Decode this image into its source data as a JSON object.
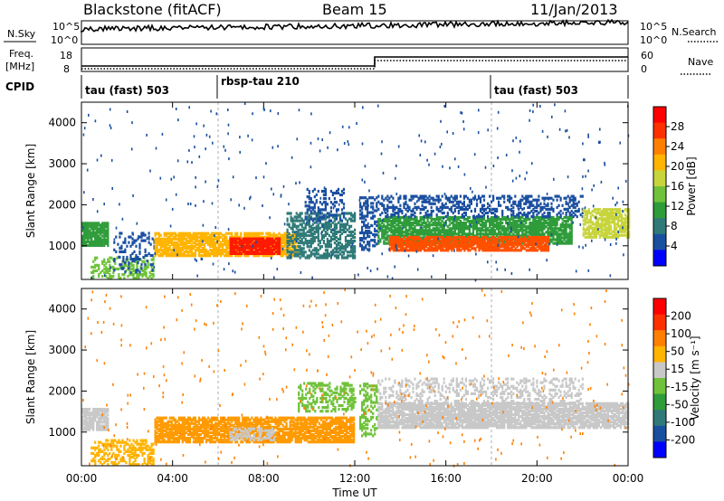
{
  "header": {
    "station": "Blackstone (fitACF)",
    "beam": "Beam 15",
    "date": "11/Jan/2013"
  },
  "strip_labels": {
    "nsky": "N.Sky",
    "nsearch": "N.Search",
    "freq": "Freq.",
    "freq_unit": "[MHz]",
    "nave": "Nave",
    "cpid": "CPID"
  },
  "strip_ticks": {
    "noise_left": [
      "10^5",
      "10^0"
    ],
    "noise_right": [
      "10^5",
      "10^0"
    ],
    "freq_left": [
      "18",
      "8"
    ],
    "nave_right": [
      "60",
      "0"
    ]
  },
  "cpid_segments": [
    {
      "label": "tau (fast) 503",
      "start_hour": 0
    },
    {
      "label": "rbsp-tau 210",
      "start_hour": 6
    },
    {
      "label": "tau (fast) 503",
      "start_hour": 18
    }
  ],
  "colors": {
    "frame": "#000000",
    "power_scale": [
      "#0000ff",
      "#1a4fa0",
      "#2f7a78",
      "#2f9c3a",
      "#6fc23a",
      "#c8d43c",
      "#ffb400",
      "#ff8000",
      "#ff3000",
      "#ff0000"
    ],
    "velocity_scale": [
      "#0000ff",
      "#1a4fa0",
      "#2f7a78",
      "#2f9c3a",
      "#6fc23a",
      "#c8c8c8",
      "#ffb400",
      "#ff8000",
      "#ff3000",
      "#ff0000"
    ]
  },
  "chart_data": [
    {
      "type": "heatmap",
      "panel": "power",
      "x_ticks": [
        "00:00",
        "04:00",
        "08:00",
        "12:00",
        "16:00",
        "20:00",
        "00:00"
      ],
      "xlim_hours": [
        0,
        24
      ],
      "ylabel": "Slant Range [km]",
      "y_ticks": [
        1000,
        2000,
        3000,
        4000
      ],
      "ylim": [
        180,
        4500
      ],
      "colorbar": {
        "label": "Power [dB]",
        "ticks": [
          "28",
          "24",
          "20",
          "16",
          "12",
          "8",
          "4"
        ]
      },
      "bands": [
        {
          "t0": 0.0,
          "t1": 1.2,
          "r0": 1000,
          "r1": 1550,
          "color": "#2f9c3a",
          "density": 0.85
        },
        {
          "t0": 0.4,
          "t1": 3.2,
          "r0": 200,
          "r1": 700,
          "color": "#6fc23a",
          "density": 0.45
        },
        {
          "t0": 1.4,
          "t1": 3.2,
          "r0": 350,
          "r1": 1300,
          "color": "#1a4fa0",
          "density": 0.25
        },
        {
          "t0": 3.2,
          "t1": 9.5,
          "r0": 750,
          "r1": 1300,
          "color": "#ffb400",
          "density": 0.8
        },
        {
          "t0": 6.5,
          "t1": 8.7,
          "r0": 800,
          "r1": 1200,
          "color": "#ff1a00",
          "density": 0.9
        },
        {
          "t0": 9.0,
          "t1": 12.0,
          "r0": 700,
          "r1": 1800,
          "color": "#2f7a78",
          "density": 0.55
        },
        {
          "t0": 9.8,
          "t1": 11.5,
          "r0": 1600,
          "r1": 2400,
          "color": "#1a4fa0",
          "density": 0.35
        },
        {
          "t0": 13.0,
          "t1": 21.5,
          "r0": 1050,
          "r1": 1700,
          "color": "#2f9c3a",
          "density": 0.8
        },
        {
          "t0": 13.5,
          "t1": 20.5,
          "r0": 880,
          "r1": 1200,
          "color": "#ff5000",
          "density": 0.85
        },
        {
          "t0": 13.0,
          "t1": 22.0,
          "r0": 1700,
          "r1": 2200,
          "color": "#1a4fa0",
          "density": 0.35
        },
        {
          "t0": 22.0,
          "t1": 24.0,
          "r0": 1200,
          "r1": 1900,
          "color": "#c8d43c",
          "density": 0.7
        },
        {
          "t0": 12.2,
          "t1": 13.0,
          "r0": 900,
          "r1": 2200,
          "color": "#1a4fa0",
          "density": 0.4
        }
      ],
      "sparse_color": "#1a4fa0"
    },
    {
      "type": "heatmap",
      "panel": "velocity",
      "x_ticks": [
        "00:00",
        "04:00",
        "08:00",
        "12:00",
        "16:00",
        "20:00",
        "00:00"
      ],
      "xlim_hours": [
        0,
        24
      ],
      "xlabel": "Time UT",
      "ylabel": "Slant Range [km]",
      "y_ticks": [
        1000,
        2000,
        3000,
        4000
      ],
      "ylim": [
        180,
        4500
      ],
      "colorbar": {
        "label": "Velocity [m s⁻¹]",
        "ticks": [
          "200",
          "100",
          "50",
          "15",
          "-15",
          "-50",
          "-100",
          "-200"
        ]
      },
      "bands": [
        {
          "t0": 0.0,
          "t1": 1.2,
          "r0": 1050,
          "r1": 1550,
          "color": "#c8c8c8",
          "density": 0.85
        },
        {
          "t0": 0.4,
          "t1": 3.2,
          "r0": 200,
          "r1": 800,
          "color": "#ffb400",
          "density": 0.45
        },
        {
          "t0": 3.2,
          "t1": 12.0,
          "r0": 750,
          "r1": 1350,
          "color": "#ff9a00",
          "density": 0.8
        },
        {
          "t0": 6.5,
          "t1": 8.5,
          "r0": 800,
          "r1": 1100,
          "color": "#c8c8c8",
          "density": 0.5
        },
        {
          "t0": 9.5,
          "t1": 12.0,
          "r0": 1500,
          "r1": 2200,
          "color": "#6fc23a",
          "density": 0.4
        },
        {
          "t0": 13.0,
          "t1": 24.0,
          "r0": 1100,
          "r1": 1700,
          "color": "#c8c8c8",
          "density": 0.85
        },
        {
          "t0": 13.0,
          "t1": 22.0,
          "r0": 1700,
          "r1": 2300,
          "color": "#c8c8c8",
          "density": 0.3
        },
        {
          "t0": 12.2,
          "t1": 13.0,
          "r0": 900,
          "r1": 2200,
          "color": "#6fc23a",
          "density": 0.4
        }
      ],
      "sparse_color": "#ff8000"
    }
  ]
}
